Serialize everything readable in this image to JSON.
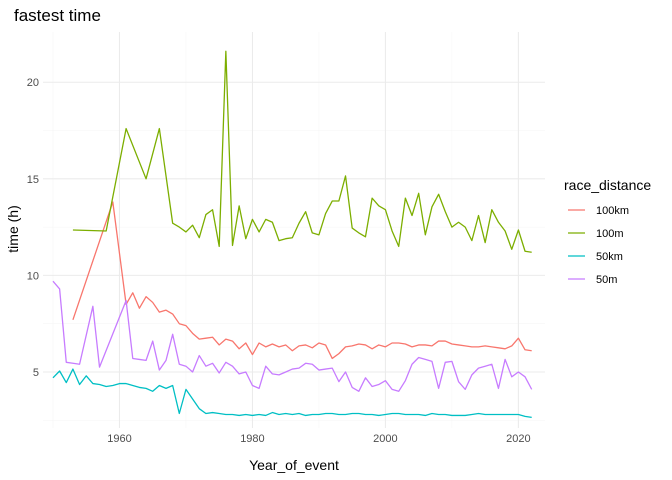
{
  "chart_data": {
    "type": "line",
    "title": "fastest time",
    "xlabel": "Year_of_event",
    "ylabel": "time (h)",
    "xlim": [
      1948.5,
      2024
    ],
    "ylim": [
      2.1,
      22.6
    ],
    "x_ticks": [
      1960,
      1980,
      2000,
      2020
    ],
    "x_minor": [
      1950,
      1970,
      1990,
      2010
    ],
    "y_ticks": [
      5,
      10,
      15,
      20
    ],
    "y_minor": [
      2.5,
      7.5,
      12.5,
      17.5
    ],
    "grid": true,
    "legend": {
      "title": "race_distance",
      "position": "right"
    },
    "series": [
      {
        "name": "100km",
        "color": "#F8766D",
        "points": [
          [
            1953,
            7.7
          ],
          [
            1959,
            13.8
          ],
          [
            1961,
            8.5
          ],
          [
            1962,
            9.1
          ],
          [
            1963,
            8.3
          ],
          [
            1964,
            8.9
          ],
          [
            1965,
            8.6
          ],
          [
            1966,
            8.1
          ],
          [
            1967,
            8.2
          ],
          [
            1968,
            8.0
          ],
          [
            1969,
            7.5
          ],
          [
            1970,
            7.4
          ],
          [
            1971,
            7.0
          ],
          [
            1972,
            6.7
          ],
          [
            1973,
            6.75
          ],
          [
            1974,
            6.8
          ],
          [
            1975,
            6.4
          ],
          [
            1976,
            6.7
          ],
          [
            1977,
            6.6
          ],
          [
            1978,
            6.2
          ],
          [
            1979,
            6.5
          ],
          [
            1980,
            5.9
          ],
          [
            1981,
            6.5
          ],
          [
            1982,
            6.3
          ],
          [
            1983,
            6.45
          ],
          [
            1984,
            6.3
          ],
          [
            1985,
            6.4
          ],
          [
            1986,
            6.1
          ],
          [
            1987,
            6.35
          ],
          [
            1988,
            6.4
          ],
          [
            1989,
            6.25
          ],
          [
            1990,
            6.5
          ],
          [
            1991,
            6.4
          ],
          [
            1992,
            5.7
          ],
          [
            1993,
            5.95
          ],
          [
            1994,
            6.3
          ],
          [
            1995,
            6.35
          ],
          [
            1996,
            6.45
          ],
          [
            1997,
            6.4
          ],
          [
            1998,
            6.2
          ],
          [
            1999,
            6.4
          ],
          [
            2000,
            6.3
          ],
          [
            2001,
            6.5
          ],
          [
            2002,
            6.5
          ],
          [
            2003,
            6.45
          ],
          [
            2004,
            6.3
          ],
          [
            2005,
            6.4
          ],
          [
            2006,
            6.4
          ],
          [
            2007,
            6.35
          ],
          [
            2008,
            6.6
          ],
          [
            2009,
            6.6
          ],
          [
            2010,
            6.45
          ],
          [
            2011,
            6.4
          ],
          [
            2012,
            6.35
          ],
          [
            2013,
            6.3
          ],
          [
            2014,
            6.3
          ],
          [
            2015,
            6.35
          ],
          [
            2016,
            6.3
          ],
          [
            2017,
            6.25
          ],
          [
            2018,
            6.2
          ],
          [
            2019,
            6.35
          ],
          [
            2020,
            6.75
          ],
          [
            2021,
            6.15
          ],
          [
            2022,
            6.1
          ]
        ]
      },
      {
        "name": "100m",
        "color": "#7CAE00",
        "points": [
          [
            1953,
            12.35
          ],
          [
            1958,
            12.3
          ],
          [
            1961,
            17.6
          ],
          [
            1964,
            15.0
          ],
          [
            1966,
            17.6
          ],
          [
            1968,
            12.7
          ],
          [
            1969,
            12.5
          ],
          [
            1970,
            12.25
          ],
          [
            1971,
            12.6
          ],
          [
            1972,
            11.95
          ],
          [
            1973,
            13.15
          ],
          [
            1974,
            13.4
          ],
          [
            1975,
            11.5
          ],
          [
            1976,
            21.6
          ],
          [
            1977,
            11.55
          ],
          [
            1978,
            13.6
          ],
          [
            1979,
            11.9
          ],
          [
            1980,
            12.9
          ],
          [
            1981,
            12.25
          ],
          [
            1982,
            12.9
          ],
          [
            1983,
            12.75
          ],
          [
            1984,
            11.8
          ],
          [
            1985,
            11.9
          ],
          [
            1986,
            11.95
          ],
          [
            1987,
            12.7
          ],
          [
            1988,
            13.3
          ],
          [
            1989,
            12.2
          ],
          [
            1990,
            12.1
          ],
          [
            1991,
            13.2
          ],
          [
            1992,
            13.85
          ],
          [
            1993,
            13.85
          ],
          [
            1994,
            15.15
          ],
          [
            1995,
            12.45
          ],
          [
            1996,
            12.2
          ],
          [
            1997,
            12.0
          ],
          [
            1998,
            14.0
          ],
          [
            1999,
            13.6
          ],
          [
            2000,
            13.4
          ],
          [
            2001,
            12.3
          ],
          [
            2002,
            11.5
          ],
          [
            2003,
            14.0
          ],
          [
            2004,
            13.1
          ],
          [
            2005,
            14.25
          ],
          [
            2006,
            12.1
          ],
          [
            2007,
            13.55
          ],
          [
            2008,
            14.2
          ],
          [
            2009,
            13.3
          ],
          [
            2010,
            12.5
          ],
          [
            2011,
            12.75
          ],
          [
            2012,
            12.5
          ],
          [
            2013,
            11.8
          ],
          [
            2014,
            13.1
          ],
          [
            2015,
            11.7
          ],
          [
            2016,
            13.4
          ],
          [
            2017,
            12.75
          ],
          [
            2018,
            12.3
          ],
          [
            2019,
            11.35
          ],
          [
            2020,
            12.35
          ],
          [
            2021,
            11.25
          ],
          [
            2022,
            11.2
          ]
        ]
      },
      {
        "name": "50km",
        "color": "#00BFC4",
        "points": [
          [
            1950,
            4.7
          ],
          [
            1951,
            5.05
          ],
          [
            1952,
            4.45
          ],
          [
            1953,
            5.15
          ],
          [
            1954,
            4.35
          ],
          [
            1955,
            4.8
          ],
          [
            1956,
            4.4
          ],
          [
            1957,
            4.35
          ],
          [
            1958,
            4.25
          ],
          [
            1959,
            4.3
          ],
          [
            1960,
            4.4
          ],
          [
            1961,
            4.4
          ],
          [
            1962,
            4.3
          ],
          [
            1963,
            4.2
          ],
          [
            1964,
            4.15
          ],
          [
            1965,
            4.0
          ],
          [
            1966,
            4.3
          ],
          [
            1967,
            4.15
          ],
          [
            1968,
            4.3
          ],
          [
            1969,
            2.85
          ],
          [
            1970,
            4.1
          ],
          [
            1971,
            3.6
          ],
          [
            1972,
            3.1
          ],
          [
            1973,
            2.85
          ],
          [
            1974,
            2.9
          ],
          [
            1975,
            2.85
          ],
          [
            1976,
            2.8
          ],
          [
            1977,
            2.8
          ],
          [
            1978,
            2.75
          ],
          [
            1979,
            2.8
          ],
          [
            1980,
            2.75
          ],
          [
            1981,
            2.8
          ],
          [
            1982,
            2.75
          ],
          [
            1983,
            2.9
          ],
          [
            1984,
            2.8
          ],
          [
            1985,
            2.85
          ],
          [
            1986,
            2.8
          ],
          [
            1987,
            2.85
          ],
          [
            1988,
            2.75
          ],
          [
            1989,
            2.8
          ],
          [
            1990,
            2.8
          ],
          [
            1991,
            2.85
          ],
          [
            1992,
            2.85
          ],
          [
            1993,
            2.8
          ],
          [
            1994,
            2.8
          ],
          [
            1995,
            2.85
          ],
          [
            1996,
            2.85
          ],
          [
            1997,
            2.8
          ],
          [
            1998,
            2.8
          ],
          [
            1999,
            2.75
          ],
          [
            2000,
            2.8
          ],
          [
            2001,
            2.85
          ],
          [
            2002,
            2.85
          ],
          [
            2003,
            2.8
          ],
          [
            2004,
            2.8
          ],
          [
            2005,
            2.8
          ],
          [
            2006,
            2.75
          ],
          [
            2007,
            2.85
          ],
          [
            2008,
            2.8
          ],
          [
            2009,
            2.8
          ],
          [
            2010,
            2.75
          ],
          [
            2011,
            2.75
          ],
          [
            2012,
            2.75
          ],
          [
            2013,
            2.8
          ],
          [
            2014,
            2.85
          ],
          [
            2015,
            2.8
          ],
          [
            2016,
            2.8
          ],
          [
            2017,
            2.8
          ],
          [
            2018,
            2.8
          ],
          [
            2019,
            2.8
          ],
          [
            2020,
            2.8
          ],
          [
            2021,
            2.7
          ],
          [
            2022,
            2.65
          ]
        ]
      },
      {
        "name": "50m",
        "color": "#C77CFF",
        "points": [
          [
            1950,
            9.7
          ],
          [
            1951,
            9.3
          ],
          [
            1952,
            5.5
          ],
          [
            1953,
            5.45
          ],
          [
            1954,
            5.4
          ],
          [
            1956,
            8.4
          ],
          [
            1957,
            5.25
          ],
          [
            1961,
            8.7
          ],
          [
            1962,
            5.7
          ],
          [
            1963,
            5.65
          ],
          [
            1964,
            5.6
          ],
          [
            1965,
            6.6
          ],
          [
            1966,
            5.1
          ],
          [
            1967,
            5.6
          ],
          [
            1968,
            6.95
          ],
          [
            1969,
            5.4
          ],
          [
            1970,
            5.3
          ],
          [
            1971,
            5.0
          ],
          [
            1972,
            5.85
          ],
          [
            1973,
            5.3
          ],
          [
            1974,
            5.45
          ],
          [
            1975,
            4.95
          ],
          [
            1976,
            5.5
          ],
          [
            1977,
            5.3
          ],
          [
            1978,
            4.9
          ],
          [
            1979,
            5.0
          ],
          [
            1980,
            4.3
          ],
          [
            1981,
            4.15
          ],
          [
            1982,
            5.3
          ],
          [
            1983,
            4.9
          ],
          [
            1984,
            4.85
          ],
          [
            1985,
            5.0
          ],
          [
            1986,
            5.15
          ],
          [
            1987,
            5.2
          ],
          [
            1988,
            5.45
          ],
          [
            1989,
            5.4
          ],
          [
            1990,
            5.1
          ],
          [
            1991,
            5.15
          ],
          [
            1992,
            5.2
          ],
          [
            1993,
            4.5
          ],
          [
            1994,
            5.0
          ],
          [
            1995,
            4.2
          ],
          [
            1996,
            4.0
          ],
          [
            1997,
            4.7
          ],
          [
            1998,
            4.25
          ],
          [
            1999,
            4.35
          ],
          [
            2000,
            4.55
          ],
          [
            2001,
            4.1
          ],
          [
            2002,
            4.0
          ],
          [
            2003,
            4.55
          ],
          [
            2004,
            5.4
          ],
          [
            2005,
            5.75
          ],
          [
            2006,
            5.65
          ],
          [
            2007,
            5.55
          ],
          [
            2008,
            4.15
          ],
          [
            2009,
            5.5
          ],
          [
            2010,
            5.55
          ],
          [
            2011,
            4.5
          ],
          [
            2012,
            4.1
          ],
          [
            2013,
            4.85
          ],
          [
            2014,
            5.2
          ],
          [
            2015,
            5.3
          ],
          [
            2016,
            5.4
          ],
          [
            2017,
            4.15
          ],
          [
            2018,
            5.65
          ],
          [
            2019,
            4.75
          ],
          [
            2020,
            5.0
          ],
          [
            2021,
            4.75
          ],
          [
            2022,
            4.1
          ]
        ]
      }
    ]
  }
}
